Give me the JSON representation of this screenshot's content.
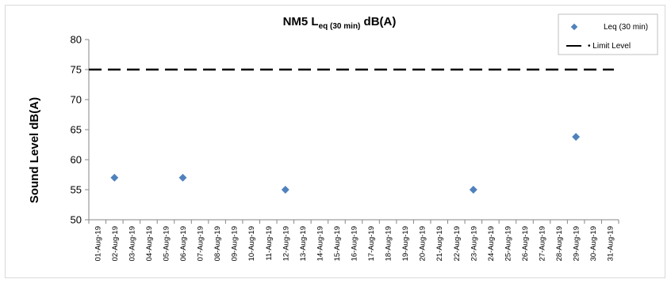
{
  "chart_data": {
    "type": "scatter",
    "title": {
      "prefix": "NM5 L",
      "subscript": "eq (30 min)",
      "suffix": " dB(A)"
    },
    "ylabel": "Sound Level dB(A)",
    "xlabel": "",
    "ylim": [
      50,
      80
    ],
    "yticks": [
      50,
      55,
      60,
      65,
      70,
      75,
      80
    ],
    "categories": [
      "01-Aug-19",
      "02-Aug-19",
      "03-Aug-19",
      "04-Aug-19",
      "05-Aug-19",
      "06-Aug-19",
      "07-Aug-19",
      "08-Aug-19",
      "09-Aug-19",
      "10-Aug-19",
      "11-Aug-19",
      "12-Aug-19",
      "13-Aug-19",
      "14-Aug-19",
      "15-Aug-19",
      "16-Aug-19",
      "17-Aug-19",
      "18-Aug-19",
      "19-Aug-19",
      "20-Aug-19",
      "21-Aug-19",
      "22-Aug-19",
      "23-Aug-19",
      "24-Aug-19",
      "25-Aug-19",
      "26-Aug-19",
      "27-Aug-19",
      "28-Aug-19",
      "29-Aug-19",
      "30-Aug-19",
      "31-Aug-19"
    ],
    "series": [
      {
        "name": "Leq (30 min)",
        "color": "#4f81bd",
        "marker": "diamond",
        "points": [
          {
            "x": "02-Aug-19",
            "y": 57
          },
          {
            "x": "06-Aug-19",
            "y": 57
          },
          {
            "x": "12-Aug-19",
            "y": 55
          },
          {
            "x": "23-Aug-19",
            "y": 55
          },
          {
            "x": "29-Aug-19",
            "y": 63.8
          }
        ]
      }
    ],
    "limit": {
      "name": "Limit Level",
      "value": 75,
      "color": "#000000",
      "style": "dashed"
    },
    "legend_position": "top-right",
    "grid": false
  }
}
